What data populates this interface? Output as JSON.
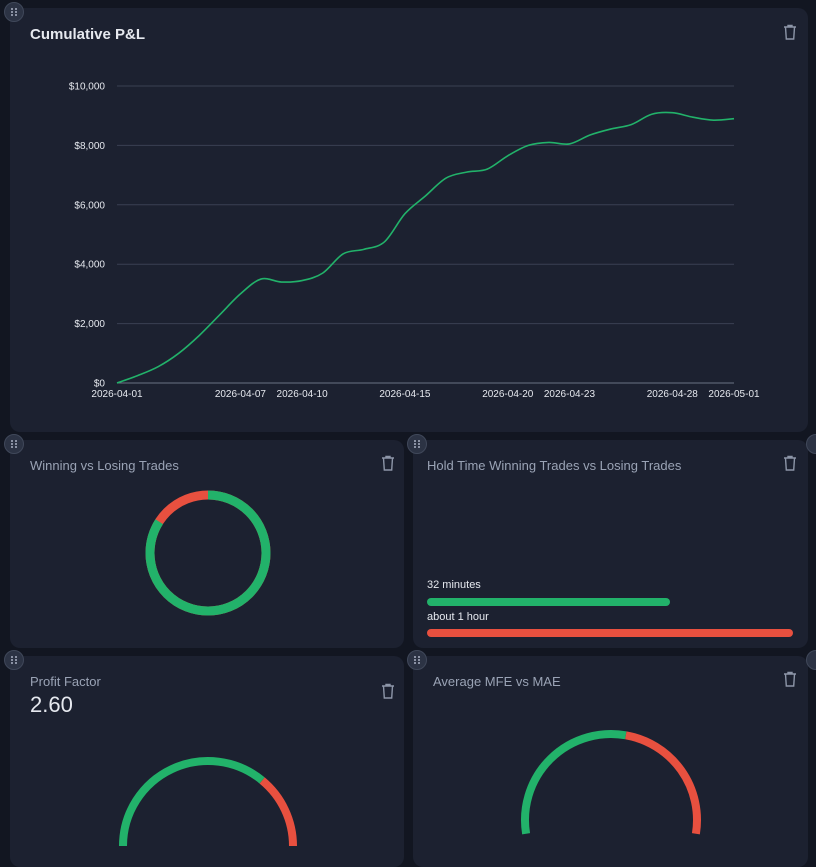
{
  "colors": {
    "win": "#22b26a",
    "loss": "#e8503f",
    "line": "#22b26a",
    "grid": "#3a4152"
  },
  "icons": {
    "drag": "drag-handle-icon",
    "delete": "trash-icon"
  },
  "pnl_card": {
    "title": "Cumulative P&L"
  },
  "win_loss_card": {
    "title": "Winning vs Losing Trades",
    "win_fraction": 0.84
  },
  "hold_time_card": {
    "title": "Hold Time Winning Trades vs Losing Trades",
    "win_label": "32 minutes",
    "loss_label": "about 1 hour",
    "win_fraction": 0.665,
    "loss_fraction": 1.0
  },
  "profit_factor_card": {
    "title": "Profit Factor",
    "value": "2.60",
    "win_fraction": 0.72
  },
  "mfe_mae_card": {
    "title": "Average MFE vs MAE",
    "mfe_fraction": 0.55
  },
  "chart_data": {
    "type": "line",
    "title": "Cumulative P&L",
    "xlabel": "",
    "ylabel": "",
    "ylim": [
      0,
      10000
    ],
    "yticks": [
      0,
      2000,
      4000,
      6000,
      8000,
      10000
    ],
    "ytick_labels": [
      "$0",
      "$2,000",
      "$4,000",
      "$6,000",
      "$8,000",
      "$10,000"
    ],
    "xlim": [
      "2026-04-01",
      "2026-05-01"
    ],
    "xticks": [
      "2026-04-01",
      "2026-04-07",
      "2026-04-10",
      "2026-04-15",
      "2026-04-20",
      "2026-04-23",
      "2026-04-28",
      "2026-05-01"
    ],
    "grid": true,
    "series": [
      {
        "x": [
          "2026-04-01",
          "2026-04-02",
          "2026-04-03",
          "2026-04-04",
          "2026-04-05",
          "2026-04-06",
          "2026-04-07",
          "2026-04-08",
          "2026-04-09",
          "2026-04-10",
          "2026-04-11",
          "2026-04-12",
          "2026-04-13",
          "2026-04-14",
          "2026-04-15",
          "2026-04-16",
          "2026-04-17",
          "2026-04-18",
          "2026-04-19",
          "2026-04-20",
          "2026-04-21",
          "2026-04-22",
          "2026-04-23",
          "2026-04-24",
          "2026-04-25",
          "2026-04-26",
          "2026-04-27",
          "2026-04-28",
          "2026-04-29",
          "2026-04-30",
          "2026-05-01"
        ],
        "y": [
          0,
          250,
          550,
          1000,
          1600,
          2300,
          3000,
          3500,
          3400,
          3450,
          3700,
          4350,
          4500,
          4750,
          5700,
          6300,
          6900,
          7100,
          7200,
          7650,
          8000,
          8100,
          8050,
          8350,
          8550,
          8700,
          9050,
          9100,
          8950,
          8850,
          8900
        ]
      }
    ]
  }
}
